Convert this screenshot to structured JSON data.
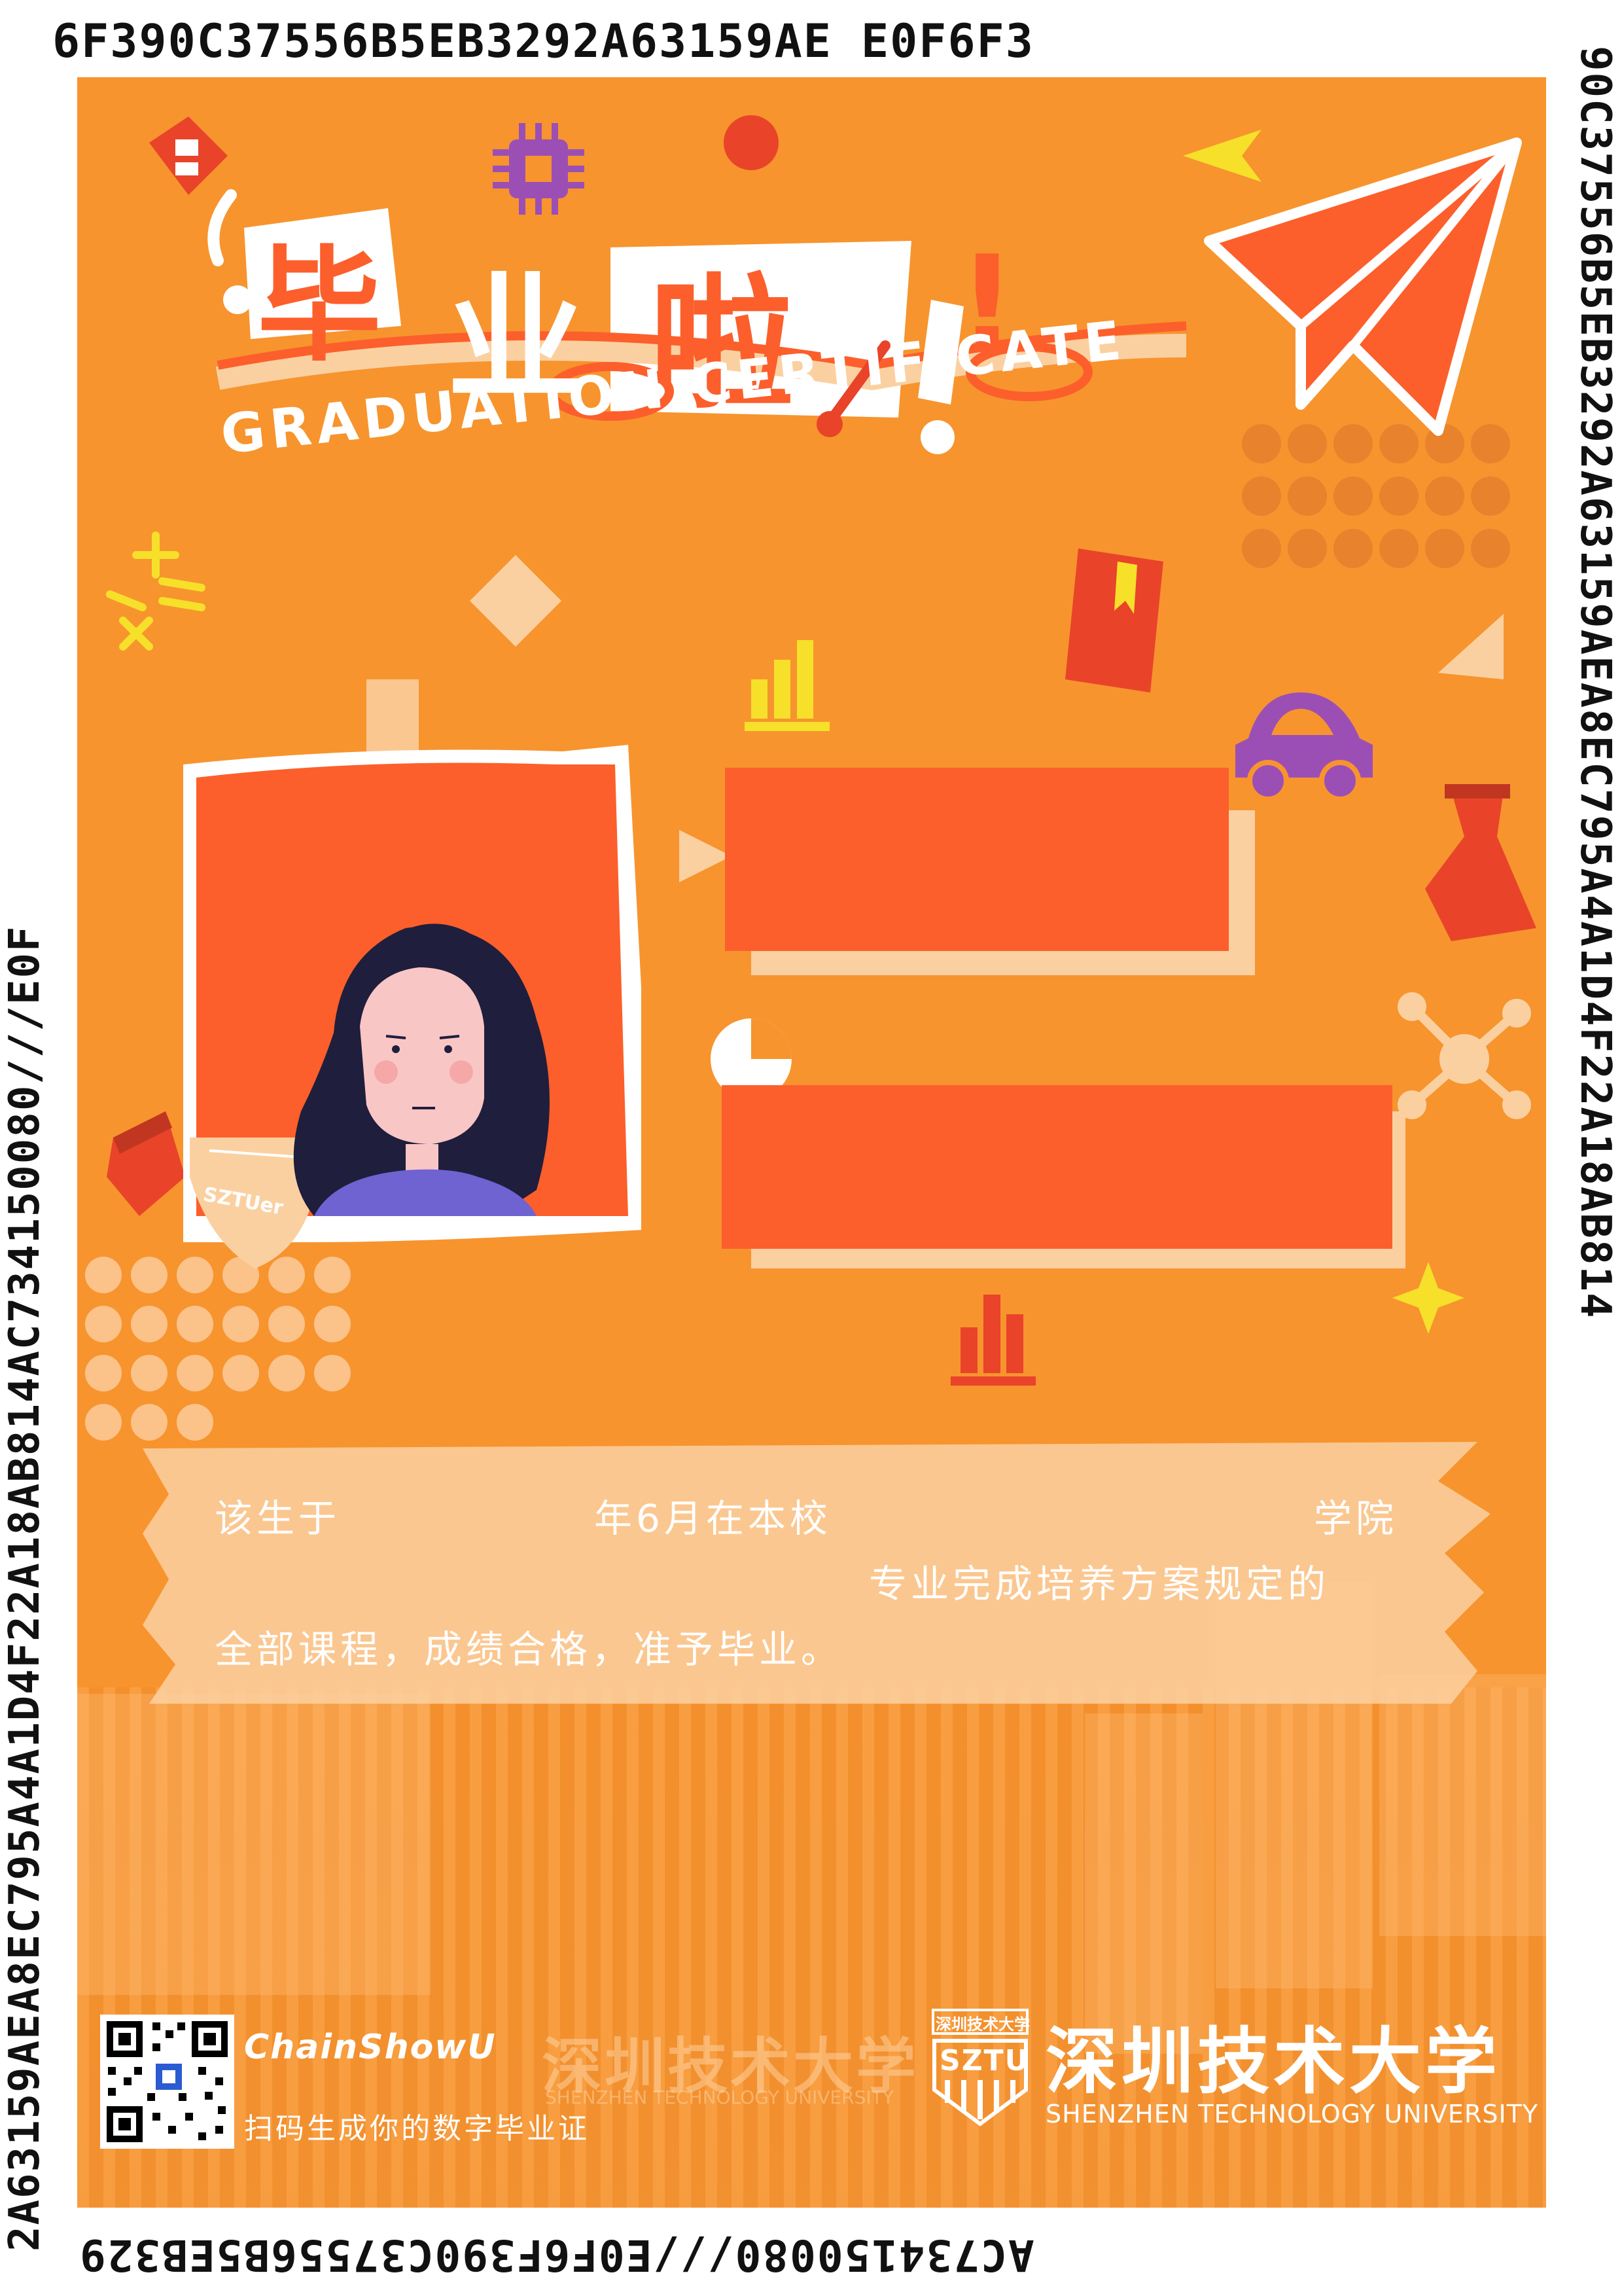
{
  "border": {
    "top": "6F390C37556B5EB3292A63159AE E0F6F3",
    "right": "90C37556B5EB3292A63159AEA8EC795A4A1D4F22A18AB814",
    "bottom": "AC734150080///E0F6F390C37556B5EB329",
    "left": "2A63159AEA8EC795A4A1D4F22A18AB814AC734150080///E0F"
  },
  "title": {
    "chars": [
      "毕",
      "业",
      "啦",
      "!"
    ],
    "subtitle": "GRADUATION CERTIFICATE"
  },
  "photo": {
    "stamp": "SZTUer"
  },
  "certificate": {
    "line1_a": "该生于",
    "line1_b": "年6月在本校",
    "line1_c": "学院",
    "line2": "专业完成培养方案规定的",
    "line3": "全部课程，成绩合格，准予毕业。"
  },
  "footer": {
    "app_name": "ChainShowU",
    "app_tagline": "扫码生成你的数字毕业证",
    "university_cn": "深圳技术大学",
    "university_en": "SHENZHEN TECHNOLOGY UNIVERSITY",
    "logo_abbr": "SZTU",
    "logo_cn": "深圳技术大学"
  },
  "colors": {
    "background": "#f7942e",
    "accent": "#fc5f2b",
    "pale": "#fbd0a1",
    "purple": "#9b4fb5",
    "yellow": "#f6e02a"
  }
}
